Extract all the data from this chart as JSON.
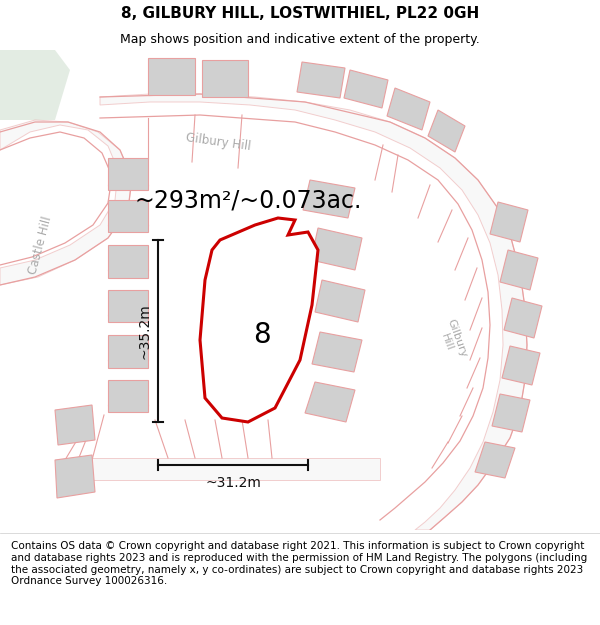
{
  "title": "8, GILBURY HILL, LOSTWITHIEL, PL22 0GH",
  "subtitle": "Map shows position and indicative extent of the property.",
  "area_text": "~293m²/~0.073ac.",
  "dim_horizontal": "~31.2m",
  "dim_vertical": "~35.2m",
  "plot_number": "8",
  "footer": "Contains OS data © Crown copyright and database right 2021. This information is subject to Crown copyright and database rights 2023 and is reproduced with the permission of HM Land Registry. The polygons (including the associated geometry, namely x, y co-ordinates) are subject to Crown copyright and database rights 2023 Ordnance Survey 100026316.",
  "map_bg": "#ffffff",
  "road_color": "#e8a0a0",
  "building_color": "#d0d0d0",
  "highlight_color": "#cc0000",
  "dim_color": "#111111",
  "street_label_color": "#aaaaaa",
  "title_fontsize": 11,
  "subtitle_fontsize": 9,
  "footer_fontsize": 7.5,
  "area_fontsize": 17,
  "dim_fontsize": 10,
  "plot_label_fontsize": 20
}
